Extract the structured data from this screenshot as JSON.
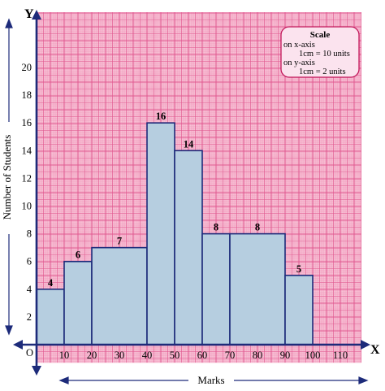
{
  "colors": {
    "paper": "#f7c2d6",
    "grid_minor": "#f29bbb",
    "grid_major": "#e0568e",
    "bar_fill": "#b6cee0",
    "bar_stroke": "#1d2b7a",
    "axis": "#1d2b7a",
    "scale_fill": "#fbe3ee",
    "scale_stroke": "#c2185b"
  },
  "axes": {
    "x_letter": "X",
    "y_letter": "Y",
    "origin_label": "O",
    "xlabel": "Marks",
    "ylabel": "Number of Students"
  },
  "scale_box": {
    "title": "Scale",
    "line1": "on x-axis",
    "line2": "1cm = 10 units",
    "line3": "on y-axis",
    "line4": "1cm = 2 units"
  },
  "chart_data": {
    "type": "bar",
    "subtype": "histogram",
    "title": "",
    "xlabel": "Marks",
    "ylabel": "Number of Students",
    "bins": [
      [
        0,
        10
      ],
      [
        10,
        20
      ],
      [
        20,
        40
      ],
      [
        40,
        50
      ],
      [
        50,
        60
      ],
      [
        60,
        70
      ],
      [
        70,
        90
      ],
      [
        90,
        100
      ]
    ],
    "values": [
      4,
      6,
      7,
      16,
      14,
      8,
      8,
      5
    ],
    "x_ticks": [
      10,
      20,
      30,
      40,
      50,
      60,
      70,
      80,
      90,
      100,
      110
    ],
    "y_ticks": [
      2,
      4,
      6,
      8,
      10,
      12,
      14,
      16,
      18,
      20
    ],
    "xlim": [
      0,
      115
    ],
    "ylim": [
      0,
      22
    ],
    "grid": true,
    "data_labels": true
  }
}
